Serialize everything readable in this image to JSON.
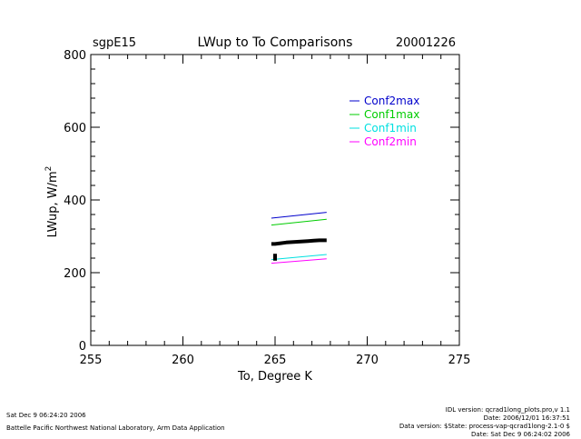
{
  "chart_data": {
    "type": "line",
    "title": "LWup to To Comparisons",
    "site": "sgpE15",
    "date": "20001226",
    "xlabel": "To, Degree K",
    "ylabel": "LWup, W/m",
    "ylabel_superscript": "2",
    "xlim": [
      255,
      275
    ],
    "ylim": [
      0,
      800
    ],
    "x_ticks": [
      "255",
      "260",
      "265",
      "270",
      "275"
    ],
    "y_ticks": [
      "0",
      "200",
      "400",
      "600",
      "800"
    ],
    "legend_placement": "top-right",
    "series": [
      {
        "name": "Conf2max",
        "color": "#0000cc",
        "x": [
          264.8,
          267.8
        ],
        "y": [
          350,
          366
        ]
      },
      {
        "name": "Conf1max",
        "color": "#00cc00",
        "x": [
          264.8,
          267.8
        ],
        "y": [
          331,
          347
        ]
      },
      {
        "name": "Conf1min",
        "color": "#00e0e0",
        "x": [
          264.8,
          267.8
        ],
        "y": [
          236,
          250
        ]
      },
      {
        "name": "Conf2min",
        "color": "#ff00ff",
        "x": [
          264.8,
          267.8
        ],
        "y": [
          226,
          238
        ]
      },
      {
        "name": "",
        "color": "#000000",
        "x": [
          264.8,
          265.0,
          265.3,
          265.6,
          265.9,
          266.2,
          266.5,
          266.8,
          267.1,
          267.4,
          267.8
        ],
        "y": [
          279,
          279,
          281,
          283,
          284,
          285,
          286,
          287,
          288,
          289,
          289
        ]
      },
      {
        "name": "",
        "color": "#000000",
        "x": [
          265.0,
          265.0
        ],
        "y": [
          252,
          233
        ]
      }
    ]
  },
  "footer": {
    "left_date": "Sat Dec  9 06:24:20 2006",
    "left_org": "Battelle Pacific Northwest National Laboratory, Arm Data Application",
    "right_line1": "IDL version: qcrad1long_plots.pro,v 1.1",
    "right_line2": "Date: 2006/12/01 16:37:51",
    "right_line3": "Data version: $State: process-vap-qcrad1long-2.1-0 $",
    "right_line4": "Date: Sat Dec  9 06:24:02 2006"
  }
}
